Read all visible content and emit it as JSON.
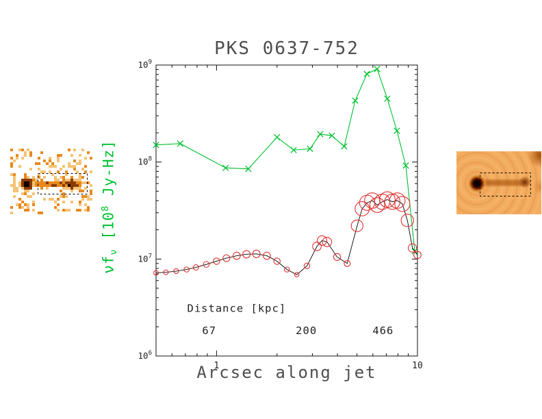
{
  "page": {
    "background": "#ffffff"
  },
  "chart_data": {
    "type": "line",
    "title": "PKS 0637-752",
    "xlabel": "Arcsec along jet",
    "ylabel": {
      "nu": "ν",
      "f": "f",
      "f_sub": "ν",
      "bracket_open": " [10",
      "exp": "8",
      "unit": " Jy-Hz]"
    },
    "xscale": "log",
    "yscale": "log",
    "xlim": [
      0.5,
      10
    ],
    "ylim": [
      1000000.0,
      1000000000.0
    ],
    "grid": false,
    "xticks": [
      {
        "value": 1,
        "label": "1"
      },
      {
        "value": 10,
        "label": "10"
      }
    ],
    "yticks": [
      {
        "value": 1000000.0,
        "base": "10",
        "exp": "6"
      },
      {
        "value": 10000000.0,
        "base": "10",
        "exp": "7"
      },
      {
        "value": 100000000.0,
        "base": "10",
        "exp": "8"
      },
      {
        "value": 1000000000.0,
        "base": "10",
        "exp": "9"
      }
    ],
    "series": [
      {
        "name": "xray-flux",
        "color": "#00c030",
        "marker": "x",
        "x": [
          0.5,
          0.66,
          1.11,
          1.44,
          2.0,
          2.42,
          2.92,
          3.28,
          3.75,
          4.32,
          4.9,
          5.6,
          6.3,
          7.08,
          7.9,
          8.75,
          9.7
        ],
        "y": [
          150000000.0,
          155000000.0,
          87000000.0,
          85000000.0,
          180000000.0,
          133000000.0,
          137000000.0,
          194000000.0,
          187000000.0,
          145000000.0,
          430000000.0,
          810000000.0,
          910000000.0,
          450000000.0,
          210000000.0,
          92000000.0,
          12000000.0
        ]
      },
      {
        "name": "radio-flux",
        "color": "#e03030",
        "marker": "circle",
        "line_color": "#000000",
        "x": [
          0.5,
          0.56,
          0.63,
          0.71,
          0.79,
          0.89,
          1.0,
          1.12,
          1.26,
          1.41,
          1.58,
          1.78,
          2.0,
          2.24,
          2.51,
          2.82,
          3.16,
          3.35,
          3.55,
          3.98,
          4.47,
          5.01,
          5.31,
          5.62,
          5.96,
          6.31,
          6.68,
          7.08,
          7.5,
          7.94,
          8.41,
          8.91,
          9.44,
          10.0
        ],
        "y": [
          7200000.0,
          7300000.0,
          7500000.0,
          7800000.0,
          8200000.0,
          8800000.0,
          9500000.0,
          10200000.0,
          10800000.0,
          11200000.0,
          11300000.0,
          10800000.0,
          9500000.0,
          7800000.0,
          6900000.0,
          8500000.0,
          13500000.0,
          15500000.0,
          15000000.0,
          10500000.0,
          9000000.0,
          22000000.0,
          33000000.0,
          38000000.0,
          40000000.0,
          36000000.0,
          39000000.0,
          41000000.0,
          39000000.0,
          40000000.0,
          37000000.0,
          25000000.0,
          13000000.0,
          11000000.0
        ]
      }
    ],
    "annotations": [
      {
        "text": "Distance [kpc]",
        "x": 1.26,
        "y": 2850000.0
      },
      {
        "text": "67",
        "x": 0.92,
        "y": 1680000.0
      },
      {
        "text": "200",
        "x": 2.8,
        "y": 1680000.0
      },
      {
        "text": "466",
        "x": 6.75,
        "y": 1680000.0
      }
    ]
  },
  "insets": {
    "left": {
      "name": "chandra-xray-inset",
      "palette": [
        "#ffffff",
        "#f6c274",
        "#e8891f",
        "#8a3c00",
        "#140000"
      ],
      "box_dashed": true
    },
    "right": {
      "name": "radio-image-inset",
      "background": "#f3ab5e",
      "core_color": "#000000",
      "jet_color": "#b45505",
      "box_dashed": true
    }
  }
}
